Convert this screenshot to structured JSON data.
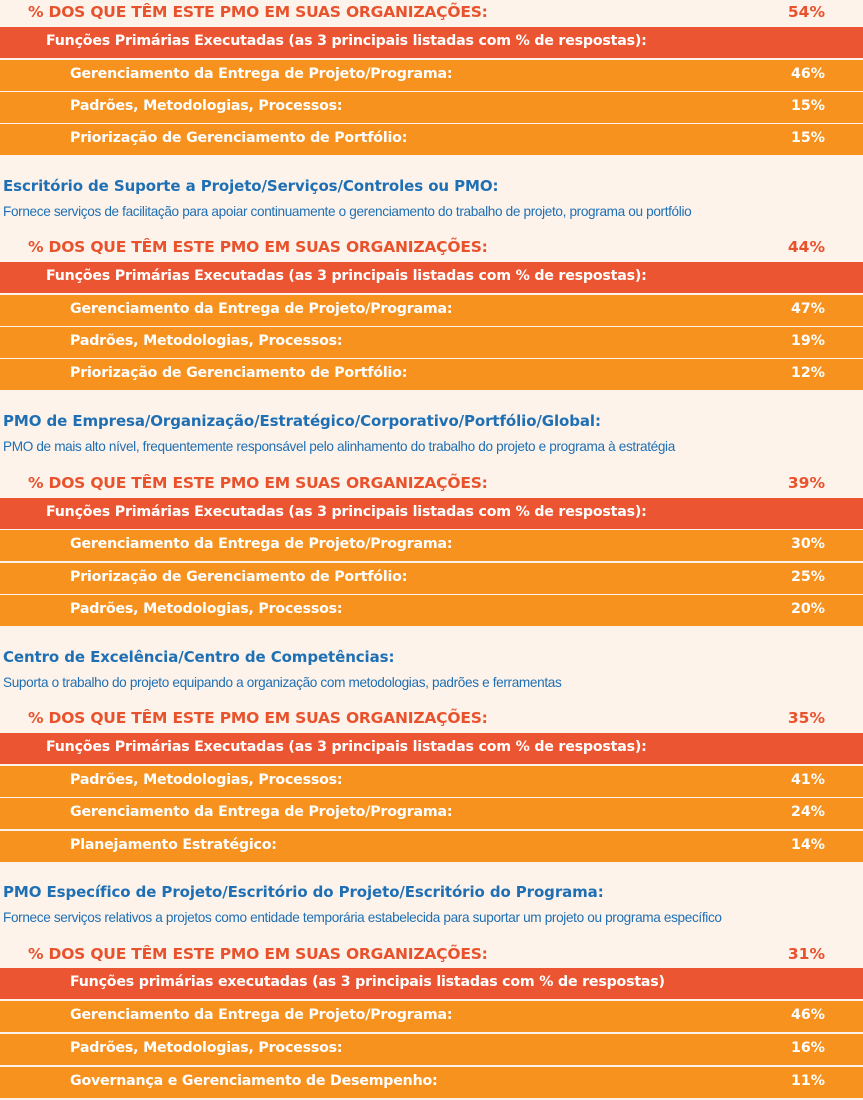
{
  "pct_label": "% DOS QUE TÊM ESTE PMO EM SUAS ORGANIZAÇÕES:",
  "sections": [
    {
      "title": "",
      "description": "",
      "pct": "54%",
      "header": "Funções Primárias Executadas (as 3 principais listadas com % de respostas):",
      "rows": [
        {
          "label": "Gerenciamento da Entrega de Projeto/Programa:",
          "value": "46%"
        },
        {
          "label": "Padrões, Metodologias, Processos:",
          "value": "15%"
        },
        {
          "label": "Priorização de Gerenciamento de Portfólio:",
          "value": "15%"
        }
      ]
    },
    {
      "title": "Escritório de Suporte a Projeto/Serviços/Controles ou PMO:",
      "description": "Fornece serviços de facilitação para apoiar continuamente o gerenciamento do trabalho de projeto, programa ou portfólio",
      "pct": "44%",
      "header": "Funções Primárias Executadas (as 3 principais listadas com % de respostas):",
      "rows": [
        {
          "label": "Gerenciamento da Entrega de Projeto/Programa:",
          "value": "47%"
        },
        {
          "label": "Padrões, Metodologias, Processos:",
          "value": "19%"
        },
        {
          "label": "Priorização de Gerenciamento de Portfólio:",
          "value": "12%"
        }
      ]
    },
    {
      "title": "PMO de Empresa/Organização/Estratégico/Corporativo/Portfólio/Global:",
      "description": "PMO de mais alto nível, frequentemente responsável pelo alinhamento do trabalho do projeto e programa à estratégia",
      "pct": "39%",
      "header": "Funções Primárias Executadas (as 3 principais listadas com % de respostas):",
      "rows": [
        {
          "label": "Gerenciamento da Entrega de Projeto/Programa:",
          "value": "30%"
        },
        {
          "label": "Priorização de Gerenciamento de Portfólio:",
          "value": "25%"
        },
        {
          "label": "Padrões, Metodologias, Processos:",
          "value": "20%"
        }
      ]
    },
    {
      "title": "Centro de Excelência/Centro de Competências:",
      "description": "Suporta o trabalho do projeto equipando a organização com metodologias, padrões e ferramentas",
      "pct": "35%",
      "header": "Funções Primárias Executadas (as 3 principais listadas com % de respostas):",
      "rows": [
        {
          "label": "Padrões, Metodologias, Processos:",
          "value": "41%"
        },
        {
          "label": "Gerenciamento da Entrega de Projeto/Programa:",
          "value": "24%"
        },
        {
          "label": "Planejamento Estratégico:",
          "value": "14%"
        }
      ]
    },
    {
      "title": "PMO Específico de Projeto/Escritório do Projeto/Escritório do Programa:",
      "description": "Fornece serviços relativos a projetos como entidade temporária estabelecida para suportar um projeto ou programa específico",
      "pct": "31%",
      "header": "Funções primárias executadas (as 3 principais listadas com % de respostas)",
      "rows": [
        {
          "label": "Gerenciamento da Entrega de Projeto/Programa:",
          "value": "46%"
        },
        {
          "label": "Padrões, Metodologias, Processos:",
          "value": "16%"
        },
        {
          "label": "Governança e Gerenciamento de Desempenho:",
          "value": "11%"
        }
      ]
    }
  ]
}
